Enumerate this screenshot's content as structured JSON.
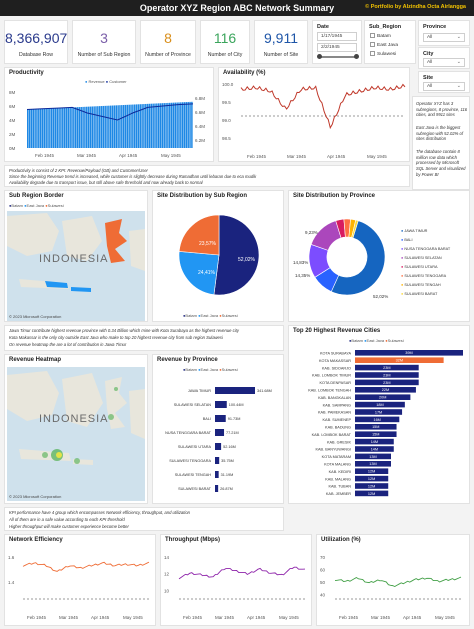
{
  "header": {
    "title": "Operator XYZ Region ABC Network Summary",
    "credit": "© Portfolio by Alzindha Octa Airlangga"
  },
  "kpis": [
    {
      "value": "8,366,907",
      "label": "Database Row",
      "color": "#2a3a8c"
    },
    {
      "value": "3",
      "label": "Number of Sub Region",
      "color": "#7a5ea8"
    },
    {
      "value": "8",
      "label": "Number of Province",
      "color": "#d98f1c"
    },
    {
      "value": "116",
      "label": "Number of City",
      "color": "#3ba55c"
    },
    {
      "value": "9,911",
      "label": "Number of Site",
      "color": "#1f56a8"
    }
  ],
  "date_slicer": {
    "title": "Date",
    "from": "1/17/1945",
    "to": "2/2/1945"
  },
  "subregion_slicer": {
    "title": "Sub_Region",
    "options": [
      "Batam",
      "East Java",
      "Sulawesi"
    ]
  },
  "province_slicer": {
    "title": "Province",
    "value": "All"
  },
  "city_slicer": {
    "title": "City",
    "value": "All"
  },
  "site_slicer": {
    "title": "Site",
    "value": "All"
  },
  "productivity": {
    "title": "Productivity",
    "legend": [
      "Revenue",
      "Customer"
    ],
    "y_left": [
      "8M",
      "6M",
      "4M",
      "2M",
      "0M"
    ],
    "y_right": [
      "6.8M",
      "6.6M",
      "6.4M",
      "6.2M"
    ],
    "x_ticks": [
      "Feb 1945",
      "Mar 1945",
      "Apr 1945",
      "May 1945"
    ]
  },
  "availability": {
    "title": "Availability (%)",
    "y_ticks": [
      "100.0",
      "99.5",
      "99.0",
      "98.5"
    ],
    "x_ticks": [
      "Feb 1945",
      "Mar 1945",
      "Apr 1945",
      "May 1945"
    ]
  },
  "side_note": [
    "Operator XYZ has 3 subregions, 8 province, 116 cities, and 9911 sites",
    "East Java is the biggest subregion with 52.02% of sites distribution",
    "The database contain 8 million row data which processed by Microsoft SQL Server and visualized by Power BI"
  ],
  "notes1": [
    "Productivity is consist of 2 KPI: Revenue/Payload (GB) and Customer/User",
    "Since the beginning Revenue trend is increased, while customer is slightly decrease during Ramadhan until lebaran due to eca mudik",
    "Availability degrade due to transport issue, but still above safe threshold and now already back to normal"
  ],
  "subregion_border": {
    "title": "Sub Region Border",
    "legend": [
      "Batam",
      "East Java",
      "Sulawesi"
    ],
    "map_label": "INDONESIA",
    "attribution": "© 2023 Microsoft Corporation"
  },
  "site_dist_subregion": {
    "title": "Site Distribution by Sub Region",
    "legend": [
      "Batam",
      "East Java",
      "Sulawesi"
    ],
    "labels": [
      "52,02%",
      "24,41%",
      "23,57%"
    ]
  },
  "site_dist_province": {
    "title": "Site Distribution by Province",
    "legend": [
      "JAWA TIMUR",
      "BALI",
      "NUSA TENGGARA BARAT",
      "SULAWESI SELATAN",
      "SULAWESI UTARA",
      "SULAWESI TENGGARA",
      "SULAWESI TENGAH",
      "SULAWESI BARAT"
    ],
    "labels": [
      "52,02%",
      "14,83%",
      "14,35%",
      "9,23%"
    ]
  },
  "notes2": [
    "Jawa Timur contribute highest revenue province with 0.34 Billion which mine with Kota Surabaya as the highest revenue city",
    "Kota Makassar is the only city outside East Java who make to top 20 highest revenue city from sub region Sulawesi",
    "On revenue heatmap the are a lot of contribution in Jawa Timur"
  ],
  "revenue_heatmap": {
    "title": "Revenue Heatmap",
    "map_label": "INDONESIA",
    "attribution": "© 2023 Microsoft Corporation"
  },
  "revenue_province": {
    "title": "Revenue by Province",
    "legend": [
      "Batam",
      "East Java",
      "Sulawesi"
    ],
    "categories": [
      "JAWA TIMUR",
      "SULAWESI SELATAN",
      "BALI",
      "NUSA TENGGARA BARAT",
      "SULAWESI UTARA",
      "SULAWESI TENGGARA",
      "SULAWESI TENGAH",
      "SULAWESI BARAT"
    ],
    "labels": [
      "341.68M",
      "100.44M",
      "91.73M",
      "77.21M",
      "52.16M",
      "35.75M",
      "31.19M",
      "26.87M"
    ]
  },
  "top_cities": {
    "title": "Top 20 Highest Revenue Cities",
    "legend": [
      "Batam",
      "East Java",
      "Sulawesi"
    ],
    "cities": [
      "KOTA SURABAYA",
      "KOTA MAKASSAR",
      "KAB. SIDOARJO",
      "KAB. LOMBOK TIMUR",
      "KOTA DENPASAR",
      "KAB. LOMBOK TENGAH",
      "KAB. BANGKALAN",
      "KAB. SAMPANG",
      "KAB. PAMEKASAN",
      "KAB. SUMENEP",
      "KAB. BADUNG",
      "KAB. LOMBOK BARAT",
      "KAB. GRESIK",
      "KAB. BANYUWANGI",
      "KOTA MATARAM",
      "KOTA MALANG",
      "KAB. KEDIRI",
      "KAB. MALANG",
      "KAB. TUBAN",
      "KAB. JEMBER"
    ],
    "labels": [
      "39M",
      "32M",
      "23M",
      "23M",
      "23M",
      "22M",
      "20M",
      "18M",
      "17M",
      "16M",
      "15M",
      "15M",
      "14M",
      "14M",
      "13M",
      "13M",
      "12M",
      "12M",
      "12M",
      "12M"
    ]
  },
  "notes3": [
    "KPI performance have 4 group which encompasses Network efficiency, throughput, and utilization",
    "All of them are in a safe value according to each KPI threshold",
    "Higher throughput will make customer experience become better"
  ],
  "network_efficiency": {
    "title": "Network Efficiency",
    "y_ticks": [
      "1.6",
      "1.4"
    ],
    "x_ticks": [
      "Feb 1945",
      "Mar 1945",
      "Apr 1945",
      "May 1945"
    ]
  },
  "throughput": {
    "title": "Throughput (Mbps)",
    "y_ticks": [
      "14",
      "12",
      "10"
    ],
    "x_ticks": [
      "Feb 1945",
      "Mar 1945",
      "Apr 1945",
      "May 1945"
    ]
  },
  "utilization": {
    "title": "Utilization (%)",
    "y_ticks": [
      "70",
      "60",
      "50",
      "40"
    ],
    "x_ticks": [
      "Feb 1945",
      "Mar 1945",
      "Apr 1945",
      "May 1945"
    ]
  },
  "chart_data": [
    {
      "type": "bar",
      "title": "Productivity",
      "series": [
        {
          "name": "Revenue",
          "values": [
            5.5,
            5.6,
            5.7,
            5.8,
            5.9,
            6.0,
            6.1,
            6.2,
            6.3,
            6.4,
            6.5,
            6.6
          ]
        },
        {
          "name": "Customer",
          "values": [
            6.65,
            6.66,
            6.67,
            6.68,
            6.6,
            6.55,
            6.5,
            6.6,
            6.68,
            6.7,
            6.72,
            6.73
          ]
        }
      ],
      "categories": [
        "Feb 1945",
        "",
        "",
        "Mar 1945",
        "",
        "",
        "Apr 1945",
        "",
        "",
        "May 1945",
        "",
        ""
      ]
    },
    {
      "type": "line",
      "title": "Availability (%)",
      "series": [
        {
          "name": "Availability",
          "values": [
            99.85,
            99.9,
            99.8,
            99.3,
            99.85,
            99.9,
            98.8,
            99.7,
            99.8,
            99.9,
            99.85,
            99.95
          ]
        }
      ],
      "ylim": [
        98.5,
        100.0
      ]
    },
    {
      "type": "pie",
      "title": "Site Distribution by Sub Region",
      "categories": [
        "East Java",
        "Sulawesi",
        "Batam"
      ],
      "values": [
        52.02,
        24.41,
        23.57
      ]
    },
    {
      "type": "pie",
      "title": "Site Distribution by Province",
      "categories": [
        "JAWA TIMUR",
        "BALI",
        "NUSA TENGGARA BARAT",
        "SULAWESI SELATAN",
        "SULAWESI UTARA",
        "SULAWESI TENGGARA",
        "SULAWESI TENGAH",
        "SULAWESI BARAT"
      ],
      "values": [
        52.02,
        9.23,
        14.35,
        14.83,
        3.5,
        2.8,
        2.2,
        1.07
      ]
    },
    {
      "type": "bar",
      "title": "Revenue by Province",
      "categories": [
        "JAWA TIMUR",
        "SULAWESI SELATAN",
        "BALI",
        "NUSA TENGGARA BARAT",
        "SULAWESI UTARA",
        "SULAWESI TENGGARA",
        "SULAWESI TENGAH",
        "SULAWESI BARAT"
      ],
      "values": [
        341.68,
        100.44,
        91.73,
        77.21,
        52.16,
        35.75,
        31.19,
        26.87
      ]
    },
    {
      "type": "bar",
      "title": "Top 20 Highest Revenue Cities",
      "categories": [
        "KOTA SURABAYA",
        "KOTA MAKASSAR",
        "KAB. SIDOARJO",
        "KAB. LOMBOK TIMUR",
        "KOTA DENPASAR",
        "KAB. LOMBOK TENGAH",
        "KAB. BANGKALAN",
        "KAB. SAMPANG",
        "KAB. PAMEKASAN",
        "KAB. SUMENEP",
        "KAB. BADUNG",
        "KAB. LOMBOK BARAT",
        "KAB. GRESIK",
        "KAB. BANYUWANGI",
        "KOTA MATARAM",
        "KOTA MALANG",
        "KAB. KEDIRI",
        "KAB. MALANG",
        "KAB. TUBAN",
        "KAB. JEMBER"
      ],
      "values": [
        39,
        32,
        23,
        23,
        23,
        22,
        20,
        18,
        17,
        16,
        15,
        15,
        14,
        14,
        13,
        13,
        12,
        12,
        12,
        12
      ]
    },
    {
      "type": "line",
      "title": "Network Efficiency",
      "series": [
        {
          "name": "Network Efficiency",
          "values": [
            1.6,
            1.62,
            1.6,
            1.55,
            1.6,
            1.58,
            1.6,
            1.62,
            1.6,
            1.61,
            1.6,
            1.62
          ]
        }
      ],
      "ylim": [
        1.3,
        1.7
      ]
    },
    {
      "type": "line",
      "title": "Throughput (Mbps)",
      "series": [
        {
          "name": "Throughput",
          "values": [
            12.5,
            13.0,
            12.8,
            12.6,
            13.5,
            13.2,
            12.9,
            13.4,
            13.0,
            12.8,
            13.6,
            13.3
          ]
        }
      ],
      "ylim": [
        10,
        15
      ]
    },
    {
      "type": "line",
      "title": "Utilization (%)",
      "series": [
        {
          "name": "Utilization",
          "values": [
            54,
            53,
            55,
            52,
            54,
            50,
            52,
            54,
            55,
            53,
            54,
            55
          ]
        }
      ],
      "ylim": [
        40,
        70
      ]
    }
  ],
  "colors": {
    "navy": "#1a237e",
    "orange": "#ef6c35",
    "blue": "#2196f3",
    "dark_blue": "#0d2a9a",
    "yellow": "#f2c200"
  }
}
